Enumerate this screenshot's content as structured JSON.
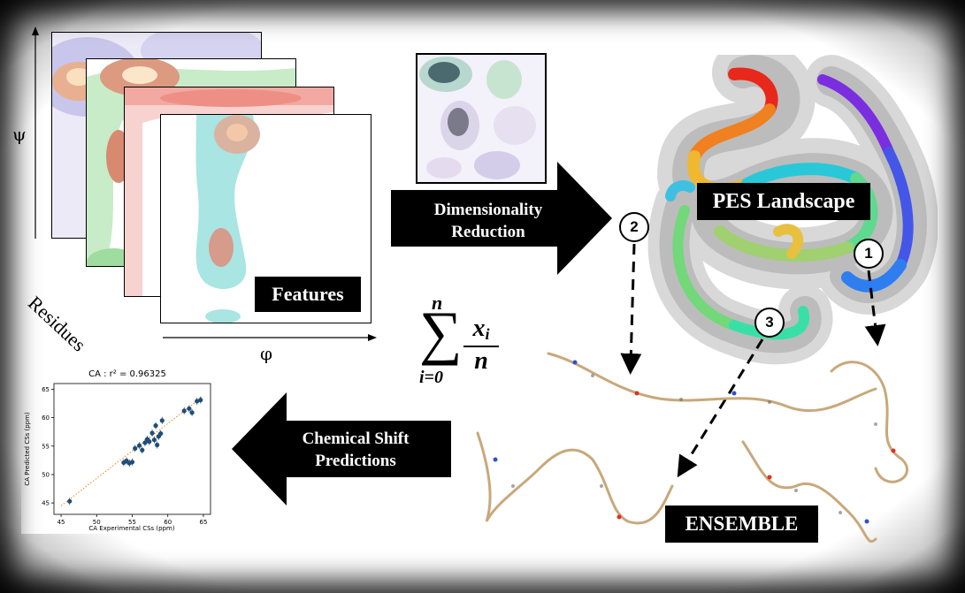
{
  "features": {
    "label": "Features",
    "psi": "ψ",
    "phi": "φ",
    "residues": "Residues"
  },
  "arrows": {
    "dim_reduction_line1": "Dimensionality",
    "dim_reduction_line2": "Reduction",
    "cs_line1": "Chemical Shift",
    "cs_line2": "Predictions"
  },
  "formula": {
    "upper": "n",
    "lower": "i=0",
    "numerator": "x",
    "subscript": "i",
    "denominator": "n"
  },
  "landscape": {
    "label": "PES Landscape",
    "markers": [
      "1",
      "2",
      "3"
    ]
  },
  "ensemble": {
    "label": "ENSEMBLE"
  },
  "colors": {
    "background": "#ffffff",
    "label_bg": "#000000",
    "label_text": "#ffffff",
    "scatter_points": "#1f4e79",
    "fit_line": "#ff7f0e"
  },
  "chart_data": {
    "type": "scatter",
    "title": "CA : r² = 0.96325",
    "xlabel": "CA Experimental CSs (ppm)",
    "ylabel": "CA Predicted CSs (ppm)",
    "xlim": [
      44,
      66
    ],
    "ylim": [
      43,
      66
    ],
    "xticks": [
      45,
      50,
      55,
      60,
      65
    ],
    "yticks": [
      45,
      50,
      55,
      60,
      65
    ],
    "points": [
      {
        "x": 46.2,
        "y": 45.3
      },
      {
        "x": 53.8,
        "y": 52.1
      },
      {
        "x": 54.2,
        "y": 52.4
      },
      {
        "x": 54.6,
        "y": 52.0
      },
      {
        "x": 55.0,
        "y": 52.2
      },
      {
        "x": 55.4,
        "y": 54.6
      },
      {
        "x": 56.0,
        "y": 55.1
      },
      {
        "x": 56.4,
        "y": 54.3
      },
      {
        "x": 56.8,
        "y": 55.6
      },
      {
        "x": 57.1,
        "y": 56.2
      },
      {
        "x": 57.4,
        "y": 55.8
      },
      {
        "x": 57.8,
        "y": 57.3
      },
      {
        "x": 58.1,
        "y": 56.1
      },
      {
        "x": 58.3,
        "y": 58.6
      },
      {
        "x": 58.5,
        "y": 55.2
      },
      {
        "x": 58.7,
        "y": 56.7
      },
      {
        "x": 59.0,
        "y": 57.2
      },
      {
        "x": 59.2,
        "y": 59.5
      },
      {
        "x": 62.3,
        "y": 61.2
      },
      {
        "x": 63.0,
        "y": 61.6
      },
      {
        "x": 63.4,
        "y": 60.9
      },
      {
        "x": 64.1,
        "y": 62.9
      },
      {
        "x": 64.6,
        "y": 63.1
      }
    ],
    "fit_line": [
      {
        "x": 45,
        "y": 44.5
      },
      {
        "x": 65,
        "y": 63.8
      }
    ],
    "grid": false
  }
}
